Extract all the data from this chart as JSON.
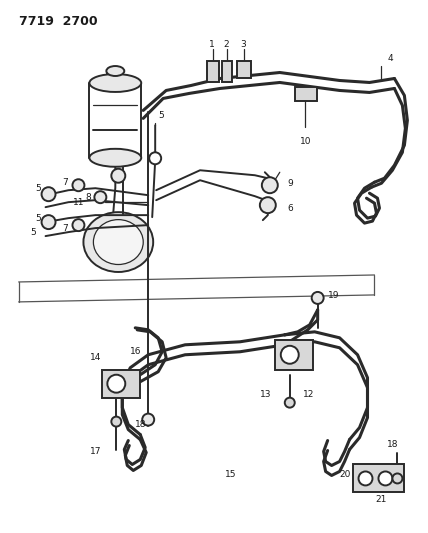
{
  "title": "7719  2700",
  "bg_color": "#ffffff",
  "line_color": "#2a2a2a",
  "text_color": "#1a1a1a",
  "title_fontsize": 9,
  "label_fontsize": 6.5,
  "figsize": [
    4.28,
    5.33
  ],
  "dpi": 100,
  "lw_thick": 2.2,
  "lw_med": 1.4,
  "lw_thin": 0.9
}
